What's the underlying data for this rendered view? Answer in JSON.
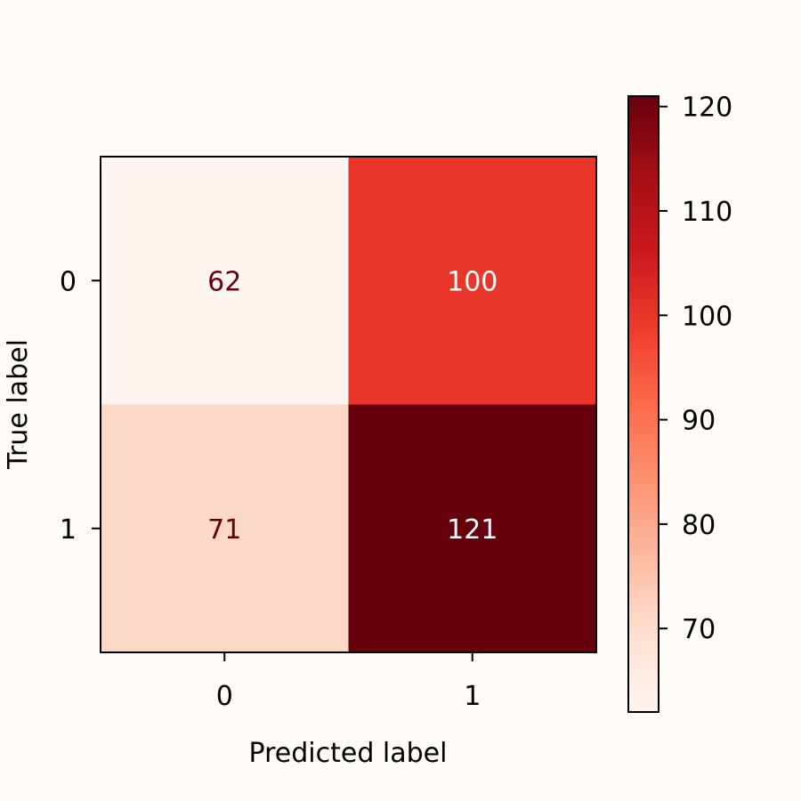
{
  "chart_data": {
    "type": "heatmap",
    "title": "",
    "xlabel": "Predicted label",
    "ylabel": "True label",
    "x_categories": [
      "0",
      "1"
    ],
    "y_categories": [
      "0",
      "1"
    ],
    "values": [
      [
        62,
        100
      ],
      [
        71,
        121
      ]
    ],
    "colormap": "Reds",
    "colorbar": {
      "min": 62,
      "max": 121,
      "ticks": [
        "70",
        "80",
        "90",
        "100",
        "110",
        "120"
      ]
    },
    "grid": false,
    "colors": {
      "background": "#fffcf7",
      "axis": "#000000",
      "text_light": "#ffffff",
      "text_dark": "#67000d"
    }
  }
}
